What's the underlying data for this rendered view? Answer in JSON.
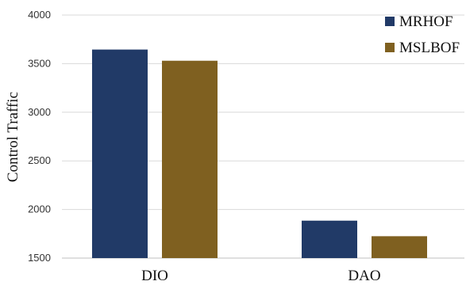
{
  "chart_data": {
    "type": "bar",
    "title": "",
    "xlabel": "",
    "ylabel": "Control Traffic",
    "categories": [
      "DIO",
      "DAO"
    ],
    "series": [
      {
        "name": "MRHOF",
        "color": "#213a67",
        "values": [
          3645,
          1885
        ]
      },
      {
        "name": "MSLBOF",
        "color": "#7f6020",
        "values": [
          3530,
          1725
        ]
      }
    ],
    "ylim": [
      1500,
      4000
    ],
    "yticks": [
      1500,
      2000,
      2500,
      3000,
      3500,
      4000
    ],
    "grid": true,
    "legend": "top-right"
  }
}
